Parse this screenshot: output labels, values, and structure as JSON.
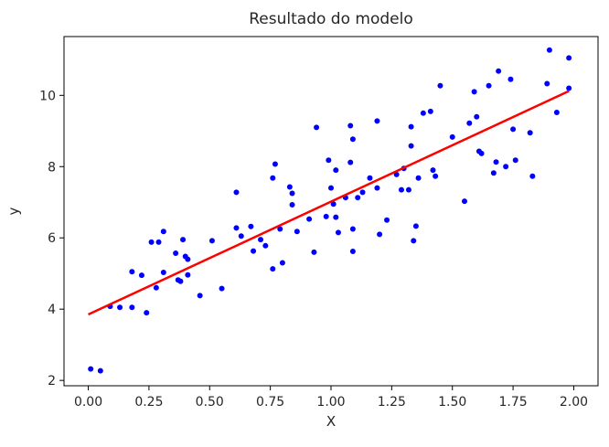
{
  "chart_data": {
    "type": "scatter",
    "title": "Resultado do modelo",
    "xlabel": "X",
    "ylabel": "y",
    "xlim": [
      -0.1,
      2.1
    ],
    "ylim": [
      1.85,
      11.65
    ],
    "xticks": [
      0.0,
      0.25,
      0.5,
      0.75,
      1.0,
      1.25,
      1.5,
      1.75,
      2.0
    ],
    "xtick_labels": [
      "0.00",
      "0.25",
      "0.50",
      "0.75",
      "1.00",
      "1.25",
      "1.50",
      "1.75",
      "2.00"
    ],
    "yticks": [
      2,
      4,
      6,
      8,
      10
    ],
    "ytick_labels": [
      "2",
      "4",
      "6",
      "8",
      "10"
    ],
    "grid": false,
    "series": [
      {
        "marker": "dot",
        "color": "#0000ff",
        "points": [
          [
            0.01,
            2.32
          ],
          [
            0.05,
            2.27
          ],
          [
            0.09,
            4.08
          ],
          [
            0.13,
            4.05
          ],
          [
            0.18,
            4.05
          ],
          [
            0.18,
            5.05
          ],
          [
            0.22,
            4.95
          ],
          [
            0.24,
            3.9
          ],
          [
            0.26,
            5.88
          ],
          [
            0.28,
            4.6
          ],
          [
            0.29,
            5.88
          ],
          [
            0.31,
            6.18
          ],
          [
            0.31,
            5.03
          ],
          [
            0.36,
            5.57
          ],
          [
            0.37,
            4.82
          ],
          [
            0.38,
            4.78
          ],
          [
            0.39,
            5.95
          ],
          [
            0.4,
            5.48
          ],
          [
            0.41,
            4.96
          ],
          [
            0.41,
            5.4
          ],
          [
            0.46,
            4.38
          ],
          [
            0.51,
            5.92
          ],
          [
            0.55,
            4.58
          ],
          [
            0.61,
            7.28
          ],
          [
            0.61,
            6.28
          ],
          [
            0.63,
            6.05
          ],
          [
            0.67,
            6.32
          ],
          [
            0.68,
            5.63
          ],
          [
            0.71,
            5.95
          ],
          [
            0.73,
            5.78
          ],
          [
            0.76,
            5.13
          ],
          [
            0.76,
            7.68
          ],
          [
            0.77,
            8.07
          ],
          [
            0.79,
            6.25
          ],
          [
            0.8,
            5.3
          ],
          [
            0.83,
            7.43
          ],
          [
            0.84,
            6.93
          ],
          [
            0.84,
            7.25
          ],
          [
            0.86,
            6.18
          ],
          [
            0.91,
            6.53
          ],
          [
            0.93,
            5.6
          ],
          [
            0.94,
            9.1
          ],
          [
            0.98,
            6.6
          ],
          [
            0.99,
            8.18
          ],
          [
            1.0,
            7.4
          ],
          [
            1.01,
            6.95
          ],
          [
            1.02,
            6.58
          ],
          [
            1.02,
            7.9
          ],
          [
            1.03,
            6.15
          ],
          [
            1.06,
            7.13
          ],
          [
            1.08,
            9.15
          ],
          [
            1.08,
            8.12
          ],
          [
            1.09,
            8.77
          ],
          [
            1.09,
            6.25
          ],
          [
            1.09,
            5.62
          ],
          [
            1.11,
            7.13
          ],
          [
            1.13,
            7.28
          ],
          [
            1.16,
            7.68
          ],
          [
            1.19,
            9.28
          ],
          [
            1.19,
            7.4
          ],
          [
            1.2,
            6.1
          ],
          [
            1.23,
            6.5
          ],
          [
            1.27,
            7.78
          ],
          [
            1.29,
            7.35
          ],
          [
            1.3,
            7.95
          ],
          [
            1.32,
            7.35
          ],
          [
            1.33,
            9.12
          ],
          [
            1.33,
            8.58
          ],
          [
            1.34,
            5.92
          ],
          [
            1.35,
            6.33
          ],
          [
            1.36,
            7.68
          ],
          [
            1.38,
            9.5
          ],
          [
            1.41,
            9.55
          ],
          [
            1.42,
            7.9
          ],
          [
            1.43,
            7.73
          ],
          [
            1.45,
            10.27
          ],
          [
            1.5,
            8.83
          ],
          [
            1.55,
            7.03
          ],
          [
            1.57,
            9.22
          ],
          [
            1.59,
            10.1
          ],
          [
            1.6,
            9.4
          ],
          [
            1.61,
            8.43
          ],
          [
            1.62,
            8.37
          ],
          [
            1.65,
            10.27
          ],
          [
            1.67,
            7.82
          ],
          [
            1.68,
            8.13
          ],
          [
            1.69,
            10.68
          ],
          [
            1.72,
            8.0
          ],
          [
            1.74,
            10.45
          ],
          [
            1.75,
            9.05
          ],
          [
            1.76,
            8.18
          ],
          [
            1.82,
            8.95
          ],
          [
            1.83,
            7.73
          ],
          [
            1.89,
            10.33
          ],
          [
            1.9,
            11.27
          ],
          [
            1.93,
            9.52
          ],
          [
            1.98,
            10.2
          ],
          [
            1.98,
            11.05
          ]
        ]
      },
      {
        "type": "line",
        "color": "#ff0000",
        "x": [
          0.0,
          1.98
        ],
        "y": [
          3.85,
          10.12
        ]
      }
    ]
  }
}
